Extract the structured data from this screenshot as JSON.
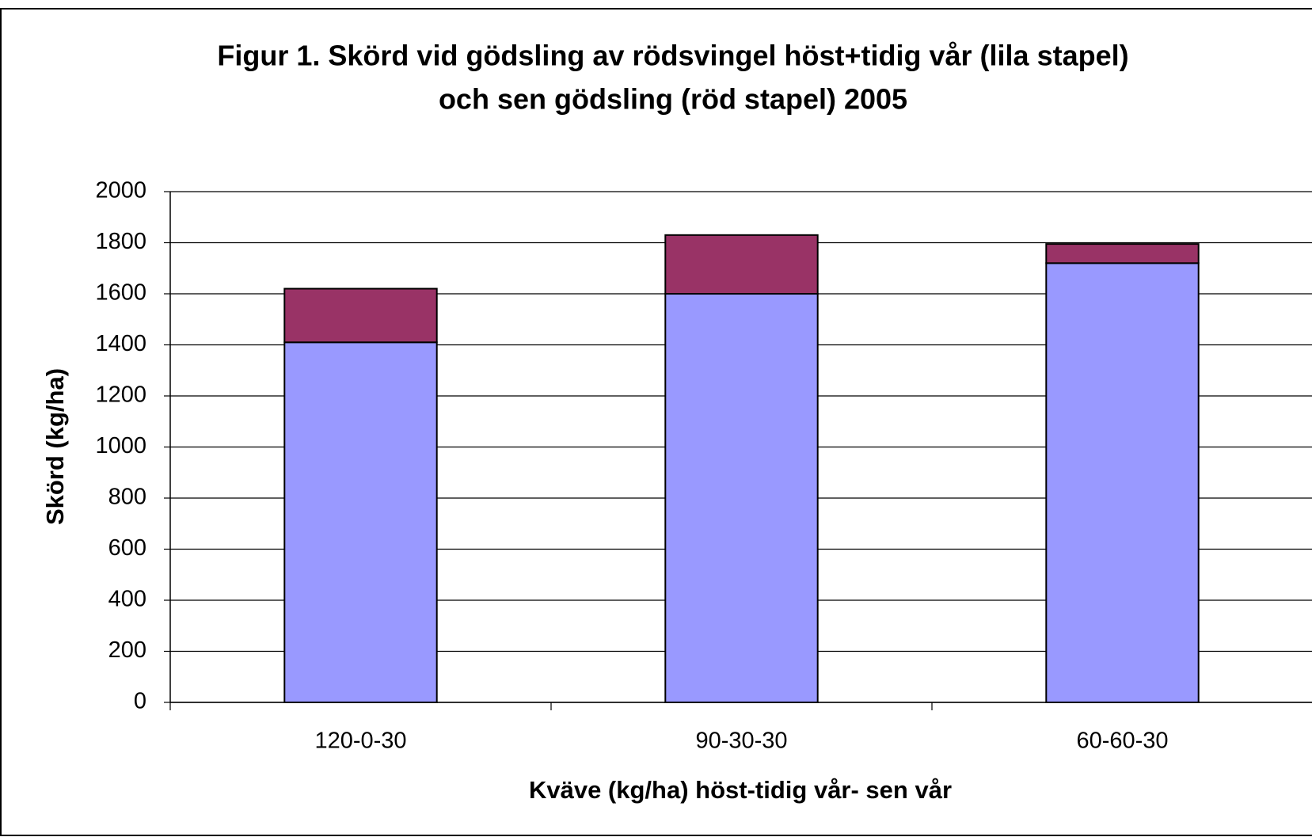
{
  "chart_data": {
    "type": "stacked_bar",
    "title": [
      "Figur 1. Skörd vid gödsling av rödsvingel höst+tidig vår (lila stapel)",
      "och sen gödsling (röd stapel) 2005"
    ],
    "x_label": "Kväve (kg/ha) höst-tidig vår- sen vår",
    "y_label": "Skörd (kg/ha)",
    "categories": [
      "120-0-30",
      "90-30-30",
      "60-60-30"
    ],
    "series": [
      {
        "color": "#9999ff",
        "values": [
          1410,
          1600,
          1720
        ]
      },
      {
        "color": "#993366",
        "values": [
          210,
          230,
          75
        ]
      }
    ],
    "ylim": [
      0,
      2000
    ],
    "yticks": [
      0,
      200,
      400,
      600,
      800,
      1000,
      1200,
      1400,
      1600,
      1800,
      2000
    ],
    "grid": true
  }
}
